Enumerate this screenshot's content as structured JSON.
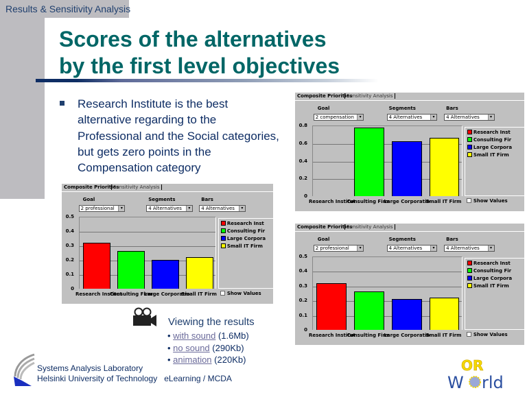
{
  "header": {
    "section": "Results & Sensitivity Analysis",
    "title_line1": "Scores of the alternatives",
    "title_line2": "by the first level objectives"
  },
  "bullet_text": "Research Institute is the best alternative regarding to the Professional and the Social categories, but gets zero points in the Compensation category",
  "panel_ui": {
    "tab_active": "Composite Priorities",
    "tab_other": "Sensitivity Analysis",
    "goal_label": "Goal",
    "segments_label": "Segments",
    "bars_label": "Bars",
    "segments_value": "4 Alternatives",
    "bars_value": "4 Alternatives",
    "show_values": "Show Values",
    "legend": [
      "Research Inst",
      "Consulting Fir",
      "Large Corpora",
      "Small IT Firm"
    ],
    "colors": [
      "#ff0000",
      "#00ff00",
      "#0000ff",
      "#ffff00"
    ]
  },
  "chart_data": [
    {
      "type": "bar",
      "goal": "2 compensation",
      "categories": [
        "Research Institut",
        "Consulting Firm",
        "Large Corporatio",
        "Small IT Firm"
      ],
      "values": [
        0,
        0.78,
        0.62,
        0.66
      ],
      "ylim": [
        0,
        0.8
      ],
      "yticks": [
        "0",
        "0.2",
        "0.4",
        "0.6",
        "0.8"
      ],
      "grid": true,
      "legend": "right"
    },
    {
      "type": "bar",
      "goal": "2 professional",
      "categories": [
        "Research Institut",
        "Consulting Firm",
        "Large Corporatio",
        "Small IT Firm"
      ],
      "values": [
        0.32,
        0.26,
        0.2,
        0.22
      ],
      "ylim": [
        0,
        0.5
      ],
      "yticks": [
        "0",
        "0.1",
        "0.2",
        "0.3",
        "0.4",
        "0.5"
      ],
      "grid": true,
      "legend": "right"
    },
    {
      "type": "bar",
      "goal": "2 professional",
      "categories": [
        "Research Institut",
        "Consulting Firm",
        "Large Corporatio",
        "Small IT Firm"
      ],
      "values": [
        0.32,
        0.26,
        0.21,
        0.22
      ],
      "ylim": [
        0,
        0.5
      ],
      "yticks": [
        "0",
        "0.1",
        "0.2",
        "0.3",
        "0.4",
        "0.5"
      ],
      "grid": true,
      "legend": "right"
    }
  ],
  "media": {
    "heading": "Viewing the results",
    "items": [
      {
        "link": "with sound",
        "size": "(1.6Mb)"
      },
      {
        "link": "no sound",
        "size": "(290Kb)"
      },
      {
        "link": "animation",
        "size": "(220Kb)"
      }
    ]
  },
  "footer": {
    "line1": "Systems Analysis Laboratory",
    "line2": "Helsinki University of Technology",
    "course": "eLearning / MCDA"
  },
  "logos": {
    "or_world": "OR World"
  }
}
